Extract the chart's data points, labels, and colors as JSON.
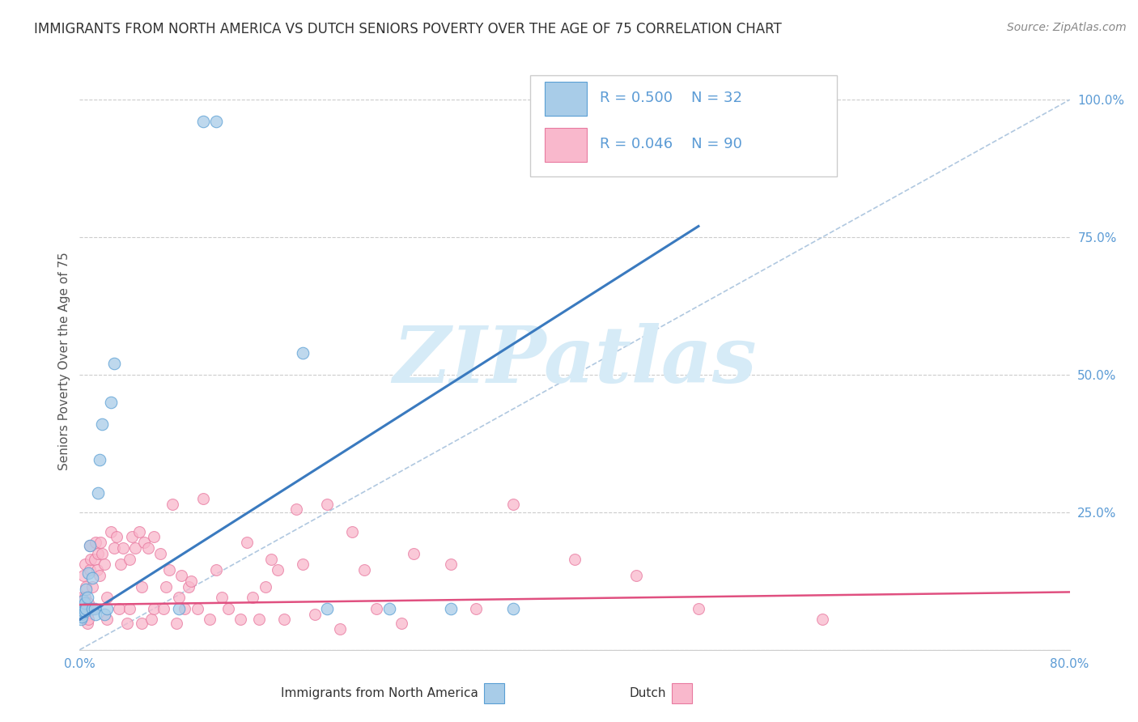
{
  "title": "IMMIGRANTS FROM NORTH AMERICA VS DUTCH SENIORS POVERTY OVER THE AGE OF 75 CORRELATION CHART",
  "source": "Source: ZipAtlas.com",
  "ylabel": "Seniors Poverty Over the Age of 75",
  "xlim": [
    0.0,
    0.8
  ],
  "ylim": [
    0.0,
    1.05
  ],
  "blue_R": 0.5,
  "blue_N": 32,
  "pink_R": 0.046,
  "pink_N": 90,
  "legend_label_blue": "Immigrants from North America",
  "legend_label_pink": "Dutch",
  "scatter_blue": [
    [
      0.001,
      0.055
    ],
    [
      0.001,
      0.065
    ],
    [
      0.002,
      0.06
    ],
    [
      0.002,
      0.08
    ],
    [
      0.003,
      0.07
    ],
    [
      0.003,
      0.09
    ],
    [
      0.004,
      0.07
    ],
    [
      0.004,
      0.085
    ],
    [
      0.005,
      0.075
    ],
    [
      0.005,
      0.11
    ],
    [
      0.006,
      0.095
    ],
    [
      0.007,
      0.14
    ],
    [
      0.008,
      0.19
    ],
    [
      0.01,
      0.13
    ],
    [
      0.01,
      0.075
    ],
    [
      0.012,
      0.075
    ],
    [
      0.013,
      0.065
    ],
    [
      0.015,
      0.285
    ],
    [
      0.016,
      0.345
    ],
    [
      0.018,
      0.41
    ],
    [
      0.02,
      0.065
    ],
    [
      0.022,
      0.075
    ],
    [
      0.025,
      0.45
    ],
    [
      0.028,
      0.52
    ],
    [
      0.08,
      0.075
    ],
    [
      0.1,
      0.96
    ],
    [
      0.11,
      0.96
    ],
    [
      0.18,
      0.54
    ],
    [
      0.2,
      0.075
    ],
    [
      0.25,
      0.075
    ],
    [
      0.3,
      0.075
    ],
    [
      0.35,
      0.075
    ]
  ],
  "scatter_pink": [
    [
      0.001,
      0.075
    ],
    [
      0.002,
      0.095
    ],
    [
      0.002,
      0.065
    ],
    [
      0.003,
      0.075
    ],
    [
      0.003,
      0.135
    ],
    [
      0.004,
      0.155
    ],
    [
      0.004,
      0.095
    ],
    [
      0.005,
      0.115
    ],
    [
      0.005,
      0.075
    ],
    [
      0.006,
      0.065
    ],
    [
      0.006,
      0.048
    ],
    [
      0.007,
      0.085
    ],
    [
      0.007,
      0.055
    ],
    [
      0.008,
      0.19
    ],
    [
      0.008,
      0.145
    ],
    [
      0.009,
      0.165
    ],
    [
      0.01,
      0.115
    ],
    [
      0.01,
      0.075
    ],
    [
      0.011,
      0.075
    ],
    [
      0.012,
      0.165
    ],
    [
      0.013,
      0.195
    ],
    [
      0.014,
      0.145
    ],
    [
      0.015,
      0.175
    ],
    [
      0.016,
      0.135
    ],
    [
      0.017,
      0.195
    ],
    [
      0.018,
      0.175
    ],
    [
      0.02,
      0.155
    ],
    [
      0.022,
      0.055
    ],
    [
      0.022,
      0.095
    ],
    [
      0.025,
      0.215
    ],
    [
      0.028,
      0.185
    ],
    [
      0.03,
      0.205
    ],
    [
      0.032,
      0.075
    ],
    [
      0.033,
      0.155
    ],
    [
      0.035,
      0.185
    ],
    [
      0.038,
      0.048
    ],
    [
      0.04,
      0.165
    ],
    [
      0.04,
      0.075
    ],
    [
      0.042,
      0.205
    ],
    [
      0.045,
      0.185
    ],
    [
      0.048,
      0.215
    ],
    [
      0.05,
      0.048
    ],
    [
      0.05,
      0.115
    ],
    [
      0.052,
      0.195
    ],
    [
      0.055,
      0.185
    ],
    [
      0.058,
      0.055
    ],
    [
      0.06,
      0.075
    ],
    [
      0.06,
      0.205
    ],
    [
      0.065,
      0.175
    ],
    [
      0.068,
      0.075
    ],
    [
      0.07,
      0.115
    ],
    [
      0.072,
      0.145
    ],
    [
      0.075,
      0.265
    ],
    [
      0.078,
      0.048
    ],
    [
      0.08,
      0.095
    ],
    [
      0.082,
      0.135
    ],
    [
      0.085,
      0.075
    ],
    [
      0.088,
      0.115
    ],
    [
      0.09,
      0.125
    ],
    [
      0.095,
      0.075
    ],
    [
      0.1,
      0.275
    ],
    [
      0.105,
      0.055
    ],
    [
      0.11,
      0.145
    ],
    [
      0.115,
      0.095
    ],
    [
      0.12,
      0.075
    ],
    [
      0.13,
      0.055
    ],
    [
      0.135,
      0.195
    ],
    [
      0.14,
      0.095
    ],
    [
      0.145,
      0.055
    ],
    [
      0.15,
      0.115
    ],
    [
      0.155,
      0.165
    ],
    [
      0.16,
      0.145
    ],
    [
      0.165,
      0.055
    ],
    [
      0.175,
      0.255
    ],
    [
      0.18,
      0.155
    ],
    [
      0.19,
      0.065
    ],
    [
      0.2,
      0.265
    ],
    [
      0.21,
      0.038
    ],
    [
      0.22,
      0.215
    ],
    [
      0.23,
      0.145
    ],
    [
      0.24,
      0.075
    ],
    [
      0.26,
      0.048
    ],
    [
      0.27,
      0.175
    ],
    [
      0.3,
      0.155
    ],
    [
      0.32,
      0.075
    ],
    [
      0.35,
      0.265
    ],
    [
      0.4,
      0.165
    ],
    [
      0.45,
      0.135
    ],
    [
      0.5,
      0.075
    ],
    [
      0.6,
      0.055
    ]
  ],
  "blue_line_x": [
    0.0,
    0.5
  ],
  "blue_line_y": [
    0.055,
    0.77
  ],
  "pink_line_x": [
    0.0,
    0.8
  ],
  "pink_line_y": [
    0.082,
    0.105
  ],
  "ref_line_x": [
    0.0,
    0.8
  ],
  "ref_line_y": [
    0.0,
    1.0
  ],
  "blue_scatter_color": "#a8cce8",
  "blue_scatter_edge": "#5a9fd4",
  "pink_scatter_color": "#f9b8cc",
  "pink_scatter_edge": "#e87aa0",
  "blue_line_color": "#3a7abf",
  "pink_line_color": "#e05080",
  "ref_line_color": "#b0c8e0",
  "grid_color": "#cccccc",
  "axis_tick_color": "#5b9bd5",
  "ylabel_color": "#555555",
  "title_color": "#333333",
  "source_color": "#888888",
  "legend_text_color": "#5b9bd5",
  "watermark_text": "ZIPatlas",
  "watermark_color": "#d6ebf7",
  "background_color": "#ffffff"
}
